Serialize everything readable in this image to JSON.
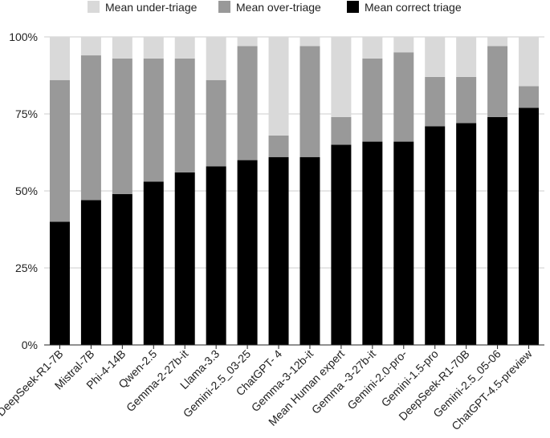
{
  "chart_data": {
    "type": "bar",
    "stacked": true,
    "categories": [
      "DeepSeek-R1-7B",
      "Mistral-7B",
      "Phi-4-14B",
      "Qwen-2.5",
      "Gemma-2-27b-it",
      "Llama-3.3",
      "Gemini-2.5_03-25",
      "ChatGPT- 4",
      "Gemma-3-12b-it",
      "Mean Human expert",
      "Gemma -3-27b-it",
      "Gemini-2.0-pro-",
      "Gemini-1.5-pro",
      "DeepSeek-R1-70B",
      "Gemini-2.5_05-06",
      "ChatGPT-4.5-preview"
    ],
    "series": [
      {
        "name": "Mean correct triage",
        "color": "#000000",
        "values": [
          0.4,
          0.47,
          0.49,
          0.53,
          0.56,
          0.58,
          0.6,
          0.61,
          0.61,
          0.65,
          0.66,
          0.66,
          0.71,
          0.72,
          0.74,
          0.77
        ]
      },
      {
        "name": "Mean over-triage",
        "color": "#999999",
        "values": [
          0.46,
          0.47,
          0.44,
          0.4,
          0.37,
          0.28,
          0.37,
          0.07,
          0.36,
          0.09,
          0.27,
          0.29,
          0.16,
          0.15,
          0.23,
          0.07
        ]
      },
      {
        "name": "Mean under-triage",
        "color": "#d9d9d9",
        "values": [
          0.14,
          0.06,
          0.07,
          0.07,
          0.07,
          0.14,
          0.03,
          0.32,
          0.03,
          0.26,
          0.07,
          0.05,
          0.13,
          0.13,
          0.03,
          0.16
        ]
      }
    ],
    "legend_order": [
      "Mean under-triage",
      "Mean over-triage",
      "Mean correct triage"
    ],
    "legend_position": "top",
    "ylim": [
      0,
      1
    ],
    "yticks": [
      {
        "value": 0,
        "label": "0%"
      },
      {
        "value": 0.25,
        "label": "25%"
      },
      {
        "value": 0.5,
        "label": "50%"
      },
      {
        "value": 0.75,
        "label": "75%"
      },
      {
        "value": 1,
        "label": "100%"
      }
    ],
    "grid": true,
    "title": "",
    "xlabel": "",
    "ylabel": ""
  }
}
